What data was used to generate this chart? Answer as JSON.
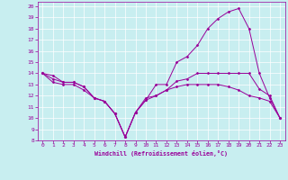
{
  "xlabel": "Windchill (Refroidissement éolien,°C)",
  "bg_color": "#c8eef0",
  "line_color": "#990099",
  "grid_color": "#ffffff",
  "xlim": [
    -0.5,
    23.5
  ],
  "ylim": [
    8,
    20.4
  ],
  "yticks": [
    8,
    9,
    10,
    11,
    12,
    13,
    14,
    15,
    16,
    17,
    18,
    19,
    20
  ],
  "xticks": [
    0,
    1,
    2,
    3,
    4,
    5,
    6,
    7,
    8,
    9,
    10,
    11,
    12,
    13,
    14,
    15,
    16,
    17,
    18,
    19,
    20,
    21,
    22,
    23
  ],
  "series": [
    {
      "x": [
        0,
        1,
        2,
        3,
        4,
        5,
        6,
        7,
        8,
        9,
        10,
        11,
        12,
        13,
        14,
        15,
        16,
        17,
        18,
        19,
        20,
        21,
        22,
        23
      ],
      "y": [
        14.0,
        13.8,
        13.2,
        13.2,
        12.8,
        11.8,
        11.5,
        10.4,
        8.3,
        10.5,
        11.6,
        13.0,
        13.0,
        15.0,
        15.5,
        16.5,
        18.0,
        18.9,
        19.5,
        19.8,
        18.0,
        14.0,
        11.8,
        10.0
      ]
    },
    {
      "x": [
        0,
        1,
        2,
        3,
        4,
        5,
        6,
        7,
        8,
        9,
        10,
        11,
        12,
        13,
        14,
        15,
        16,
        17,
        18,
        19,
        20,
        21,
        22,
        23
      ],
      "y": [
        14.0,
        13.5,
        13.2,
        13.2,
        12.8,
        11.8,
        11.5,
        10.4,
        8.3,
        10.5,
        11.6,
        12.0,
        12.5,
        13.3,
        13.5,
        14.0,
        14.0,
        14.0,
        14.0,
        14.0,
        14.0,
        12.6,
        12.0,
        10.0
      ]
    },
    {
      "x": [
        0,
        1,
        2,
        3,
        4,
        5,
        6,
        7,
        8,
        9,
        10,
        11,
        12,
        13,
        14,
        15,
        16,
        17,
        18,
        19,
        20,
        21,
        22,
        23
      ],
      "y": [
        14.0,
        13.2,
        13.0,
        13.0,
        12.5,
        11.8,
        11.5,
        10.4,
        8.3,
        10.5,
        11.8,
        12.0,
        12.5,
        12.8,
        13.0,
        13.0,
        13.0,
        13.0,
        12.8,
        12.5,
        12.0,
        11.8,
        11.5,
        10.0
      ]
    }
  ]
}
